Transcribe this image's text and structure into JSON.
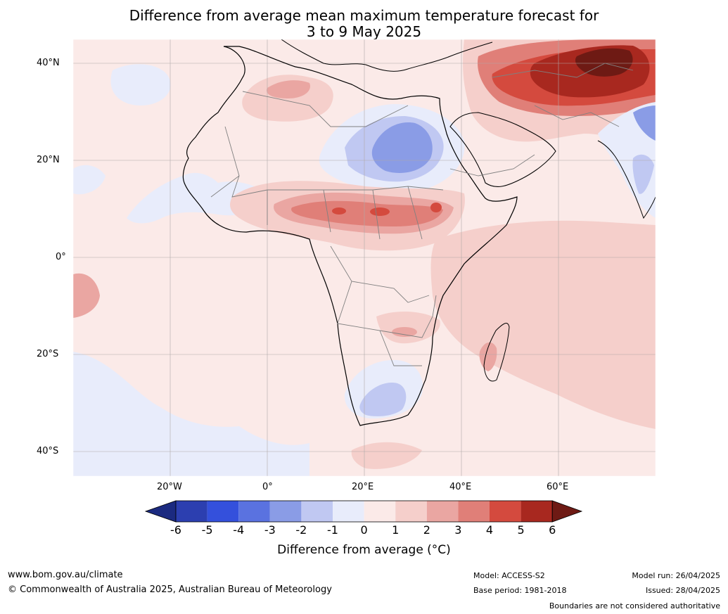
{
  "title": {
    "line1": "Difference from average mean maximum temperature forecast for",
    "line2": "3 to 9 May 2025"
  },
  "map": {
    "lat_labels": [
      "40°N",
      "20°N",
      "0°",
      "20°S",
      "40°S"
    ],
    "lon_labels": [
      "20°W",
      "0°",
      "20°E",
      "40°E",
      "60°E"
    ]
  },
  "colorbar": {
    "title": "Difference from average (°C)",
    "ticks": [
      "-6",
      "-5",
      "-4",
      "-3",
      "-2",
      "-1",
      "0",
      "1",
      "2",
      "3",
      "4",
      "5",
      "6"
    ],
    "colors": [
      "#1b2a80",
      "#2c3fb0",
      "#3450dc",
      "#5a72e0",
      "#8a9ce6",
      "#c0c8f2",
      "#e8ecfb",
      "#fbeae8",
      "#f5cfcb",
      "#eaa6a2",
      "#e07f78",
      "#d44a3e",
      "#a8281f",
      "#6e1a14"
    ]
  },
  "footer": {
    "url": "www.bom.gov.au/climate",
    "copyright": "© Commonwealth of Australia 2025, Australian Bureau of Meteorology",
    "model": "Model: ACCESS-S2",
    "base_period": "Base period: 1981-2018",
    "model_run": "Model run: 26/04/2025",
    "issued": "Issued: 28/04/2025",
    "boundaries": "Boundaries are not considered authoritative"
  }
}
